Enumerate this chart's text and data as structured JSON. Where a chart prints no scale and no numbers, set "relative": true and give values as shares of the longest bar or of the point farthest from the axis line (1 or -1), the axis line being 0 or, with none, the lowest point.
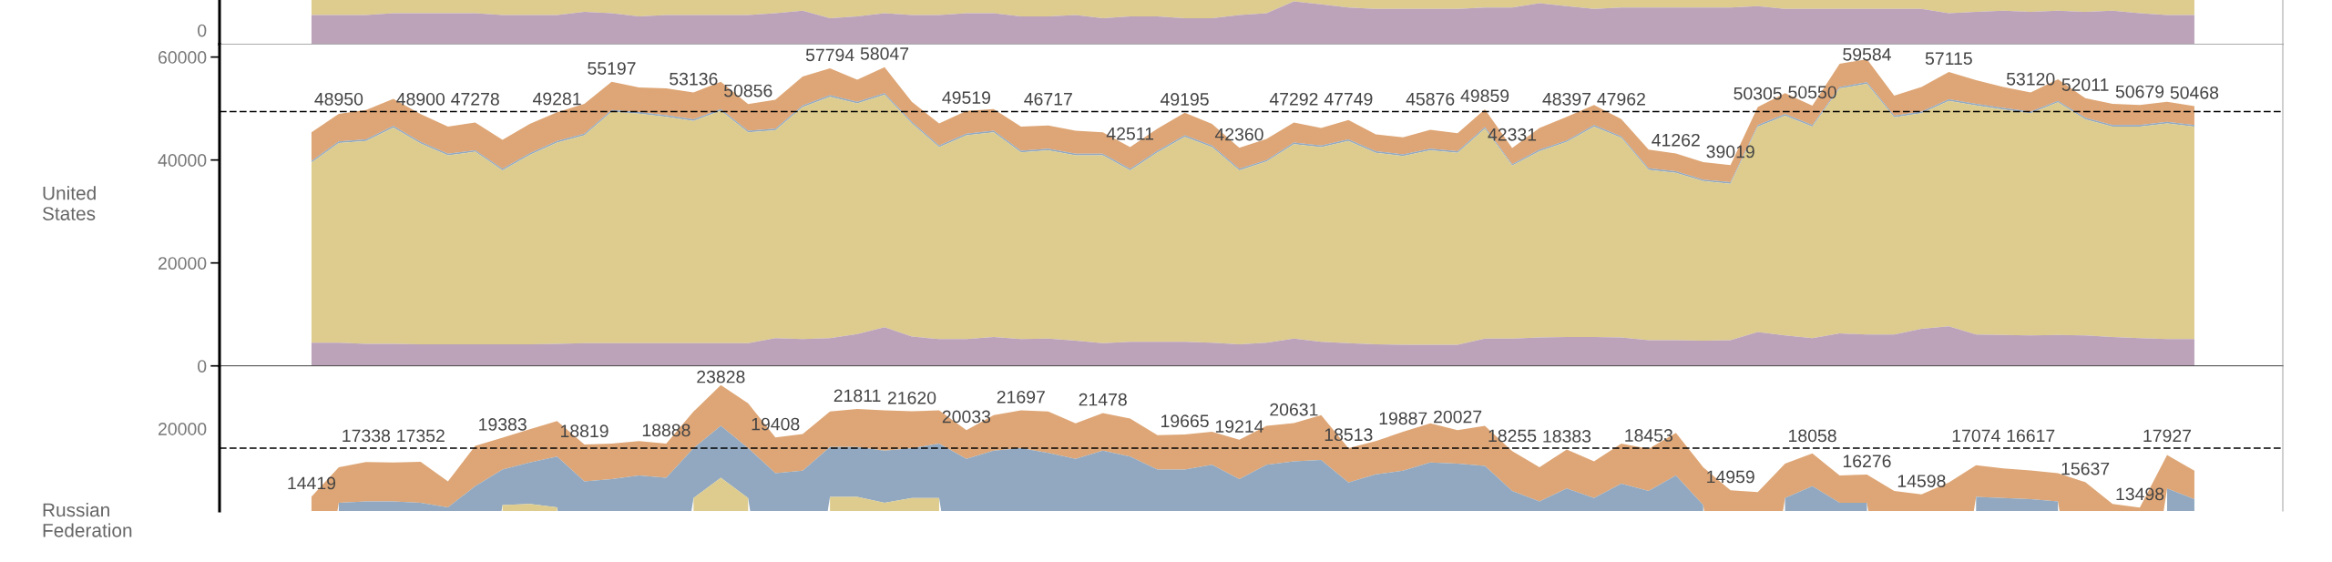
{
  "chart_data": [
    {
      "type": "area",
      "relative": true,
      "annotations": [
        "0"
      ],
      "categories": [
        null,
        null,
        null,
        null,
        null,
        null,
        null,
        null,
        null,
        null,
        null,
        null,
        null,
        null,
        null,
        null,
        null,
        null,
        null,
        null,
        null,
        null,
        null,
        null,
        null,
        null,
        null,
        null,
        null,
        null,
        null,
        null,
        null,
        null,
        null,
        null,
        null,
        null,
        null,
        null,
        null,
        null,
        null,
        null,
        null,
        null,
        null,
        null,
        null,
        null,
        null,
        null,
        null,
        null,
        null,
        null,
        null,
        null,
        null,
        null,
        null,
        null,
        null,
        null,
        null,
        null,
        null,
        null,
        null,
        null
      ],
      "series": [
        {
          "color": "#ddcc8e",
          "values": [
            1,
            1,
            1,
            1,
            1,
            1,
            1,
            1,
            1,
            1,
            1,
            1,
            1,
            1,
            1,
            1,
            1,
            1,
            1,
            1,
            1,
            1,
            1,
            1,
            1,
            1,
            1,
            1,
            1,
            1,
            1,
            1,
            1,
            1,
            1,
            1,
            1,
            1,
            1,
            1,
            1,
            1,
            1,
            1,
            1,
            1,
            1,
            1,
            1,
            1,
            1,
            1,
            1,
            1,
            1,
            1,
            1,
            1,
            1,
            1,
            1,
            1,
            1,
            1,
            1,
            1,
            1,
            1,
            1,
            1
          ]
        },
        {
          "color": "#bca3b9",
          "values": [
            0.66,
            0.66,
            0.66,
            0.7,
            0.7,
            0.7,
            0.7,
            0.66,
            0.66,
            0.66,
            0.73,
            0.7,
            0.63,
            0.66,
            0.66,
            0.66,
            0.66,
            0.7,
            0.76,
            0.59,
            0.63,
            0.7,
            0.66,
            0.66,
            0.7,
            0.7,
            0.63,
            0.63,
            0.66,
            0.59,
            0.63,
            0.63,
            0.59,
            0.59,
            0.66,
            0.7,
            0.97,
            0.9,
            0.83,
            0.8,
            0.8,
            0.8,
            0.8,
            0.83,
            0.83,
            0.93,
            0.86,
            0.8,
            0.83,
            0.83,
            0.83,
            0.83,
            0.83,
            0.86,
            0.8,
            0.8,
            0.8,
            0.8,
            0.8,
            0.8,
            0.7,
            0.73,
            0.76,
            0.73,
            0.76,
            0.73,
            0.76,
            0.7,
            0.66,
            0.66
          ]
        }
      ]
    },
    {
      "type": "area",
      "title": "United States",
      "ylim": [
        0,
        62500
      ],
      "yticks": [
        0,
        20000,
        40000,
        60000
      ],
      "ref_lines": [
        {
          "axis": "y",
          "value": 49400,
          "line_style": "dashed",
          "color": "#000000"
        }
      ],
      "categories": [
        null,
        null,
        null,
        null,
        null,
        null,
        null,
        null,
        null,
        null,
        null,
        null,
        null,
        null,
        null,
        null,
        null,
        null,
        null,
        null,
        null,
        null,
        null,
        null,
        null,
        null,
        null,
        null,
        null,
        null,
        null,
        null,
        null,
        null,
        null,
        null,
        null,
        null,
        null,
        null,
        null,
        null,
        null,
        null,
        null,
        null,
        null,
        null,
        null,
        null,
        null,
        null,
        null,
        null,
        null,
        null,
        null,
        null,
        null,
        null,
        null,
        null,
        null,
        null,
        null,
        null,
        null,
        null,
        null,
        null
      ],
      "series": [
        {
          "color": "#dea676",
          "values": [
            45400,
            48950,
            49700,
            51900,
            48900,
            46500,
            47278,
            43900,
            47000,
            49281,
            50900,
            55197,
            54100,
            53900,
            53136,
            55200,
            50856,
            51700,
            56200,
            57794,
            55600,
            58047,
            51300,
            47100,
            49519,
            49900,
            46500,
            46717,
            45700,
            45400,
            42511,
            46100,
            49195,
            47000,
            42360,
            44100,
            47292,
            46200,
            47749,
            45000,
            44400,
            45876,
            45200,
            49859,
            42331,
            46200,
            48397,
            50700,
            47962,
            42000,
            41262,
            39600,
            39019,
            50305,
            53000,
            50550,
            58700,
            59584,
            52500,
            54200,
            57115,
            55500,
            54200,
            53120,
            55700,
            52011,
            50900,
            50679,
            51300,
            50468
          ],
          "value_labels": [
            null,
            "48950",
            null,
            null,
            "48900",
            null,
            "47278",
            null,
            null,
            "49281",
            null,
            "55197",
            null,
            null,
            "53136",
            null,
            "50856",
            null,
            null,
            "57794",
            null,
            "58047",
            null,
            null,
            "49519",
            null,
            null,
            "46717",
            null,
            null,
            "42511",
            null,
            "49195",
            null,
            "42360",
            null,
            "47292",
            null,
            "47749",
            null,
            null,
            "45876",
            null,
            "49859",
            "42331",
            null,
            "48397",
            null,
            "47962",
            null,
            "41262",
            null,
            "39019",
            "50305",
            null,
            "50550",
            null,
            "59584",
            null,
            null,
            "57115",
            null,
            null,
            "53120",
            null,
            "52011",
            null,
            "50679",
            null,
            "50468"
          ]
        },
        {
          "color": "#91a8c0",
          "values": [
            39800,
            43600,
            44000,
            46600,
            43500,
            41200,
            41900,
            38300,
            41300,
            43700,
            45100,
            49700,
            49300,
            48700,
            47900,
            49900,
            45700,
            46100,
            50600,
            52600,
            51300,
            53000,
            47400,
            42800,
            45100,
            45700,
            41800,
            42200,
            41200,
            41200,
            38300,
            41800,
            44800,
            42800,
            38300,
            40000,
            43400,
            42800,
            44000,
            41700,
            41100,
            42200,
            41700,
            46400,
            39200,
            42000,
            43800,
            46800,
            44600,
            38400,
            37800,
            36200,
            35700,
            46800,
            48900,
            46800,
            54200,
            55100,
            48600,
            49400,
            51800,
            50900,
            50100,
            49400,
            51500,
            48200,
            46800,
            46800,
            47400,
            46800
          ]
        },
        {
          "color": "#ddcc8e",
          "values": [
            39500,
            43300,
            43700,
            46300,
            43200,
            40900,
            41600,
            38000,
            41000,
            43400,
            44800,
            49400,
            49000,
            48400,
            47600,
            49600,
            45400,
            45800,
            50300,
            52300,
            51000,
            52700,
            47100,
            42500,
            44800,
            45400,
            41500,
            41900,
            40900,
            40900,
            38000,
            41500,
            44500,
            42500,
            38000,
            39700,
            43100,
            42500,
            43700,
            41400,
            40800,
            41900,
            41400,
            46100,
            38900,
            41700,
            43500,
            46500,
            44300,
            38100,
            37500,
            35900,
            35400,
            46500,
            48600,
            46500,
            53900,
            54800,
            48300,
            49100,
            51500,
            50600,
            49800,
            49100,
            51200,
            47900,
            46500,
            46500,
            47100,
            46500
          ]
        },
        {
          "color": "#bca3b9",
          "values": [
            4500,
            4500,
            4300,
            4300,
            4200,
            4200,
            4200,
            4200,
            4200,
            4300,
            4400,
            4400,
            4400,
            4400,
            4400,
            4400,
            4400,
            5400,
            5200,
            5400,
            6200,
            7500,
            5700,
            5200,
            5200,
            5600,
            5200,
            5300,
            4900,
            4400,
            4700,
            4700,
            4700,
            4500,
            4200,
            4500,
            5300,
            4700,
            4400,
            4200,
            4100,
            4100,
            4100,
            5300,
            5300,
            5500,
            5600,
            5600,
            5500,
            5000,
            5000,
            4900,
            5000,
            6600,
            5900,
            5400,
            6300,
            6100,
            6100,
            7200,
            7700,
            6100,
            6000,
            5900,
            6000,
            5900,
            5600,
            5400,
            5200,
            5200
          ]
        }
      ]
    },
    {
      "type": "area",
      "ylim": [
        13200,
        25400
      ],
      "annotations": [
        "20000",
        "Russian Federation"
      ],
      "ref_lines": [
        {
          "axis": "y",
          "value": 18500,
          "line_style": "dashed",
          "color": "#000000"
        }
      ],
      "categories": [
        null,
        null,
        null,
        null,
        null,
        null,
        null,
        null,
        null,
        null,
        null,
        null,
        null,
        null,
        null,
        null,
        null,
        null,
        null,
        null,
        null,
        null,
        null,
        null,
        null,
        null,
        null,
        null,
        null,
        null,
        null,
        null,
        null,
        null,
        null,
        null,
        null,
        null,
        null,
        null,
        null,
        null,
        null,
        null,
        null,
        null,
        null,
        null,
        null,
        null,
        null,
        null,
        null,
        null,
        null,
        null,
        null,
        null,
        null,
        null,
        null,
        null,
        null,
        null,
        null,
        null,
        null,
        null,
        null,
        null
      ],
      "series": [
        {
          "color": "#dea676",
          "values": [
            14419,
            16900,
            17338,
            17300,
            17352,
            15700,
            18700,
            19383,
            20100,
            20800,
            18819,
            18900,
            19100,
            18888,
            21600,
            23828,
            22300,
            19408,
            19700,
            21600,
            21811,
            21700,
            21620,
            21700,
            20033,
            21300,
            21697,
            21600,
            20600,
            21478,
            21000,
            19600,
            19665,
            19900,
            19214,
            20400,
            20631,
            21300,
            18513,
            19100,
            19887,
            20600,
            20027,
            20400,
            18255,
            16900,
            18383,
            17400,
            18900,
            18453,
            19800,
            16900,
            14959,
            14800,
            17200,
            18058,
            16200,
            16276,
            14900,
            14598,
            15600,
            17074,
            16800,
            16617,
            16400,
            15637,
            13800,
            13498,
            17927,
            16600
          ],
          "value_labels": [
            "14419",
            null,
            "17338",
            null,
            "17352",
            null,
            null,
            "19383",
            null,
            null,
            "18819",
            null,
            null,
            "18888",
            null,
            "23828",
            null,
            "19408",
            null,
            null,
            "21811",
            null,
            "21620",
            null,
            "20033",
            null,
            "21697",
            null,
            null,
            "21478",
            null,
            null,
            "19665",
            null,
            "19214",
            null,
            "20631",
            null,
            "18513",
            null,
            "19887",
            null,
            "20027",
            null,
            "18255",
            null,
            "18383",
            null,
            null,
            "18453",
            null,
            null,
            "14959",
            null,
            null,
            "18058",
            null,
            "16276",
            null,
            "14598",
            null,
            "17074",
            null,
            "16617",
            null,
            "15637",
            null,
            "13498",
            "17927",
            null
          ]
        },
        {
          "color": "#91a8c0",
          "values": [
            null,
            13900,
            14000,
            14000,
            13900,
            13500,
            15300,
            16700,
            17300,
            17800,
            15700,
            15900,
            16200,
            16000,
            18500,
            20400,
            18500,
            16400,
            16600,
            18600,
            18600,
            18300,
            18500,
            18900,
            17600,
            18300,
            18500,
            18100,
            17600,
            18300,
            17800,
            16700,
            16700,
            17100,
            15900,
            17100,
            17400,
            17500,
            15600,
            16300,
            16600,
            17300,
            17200,
            17000,
            14900,
            14000,
            15100,
            14300,
            15500,
            14900,
            16200,
            13700,
            null,
            null,
            14300,
            15300,
            13900,
            13900,
            null,
            null,
            null,
            14400,
            14300,
            14200,
            14000,
            null,
            null,
            null,
            15100,
            14200
          ]
        },
        {
          "color": "#ddcc8e",
          "values": [
            null,
            null,
            null,
            null,
            null,
            null,
            null,
            13700,
            13800,
            13500,
            null,
            null,
            null,
            null,
            14300,
            16000,
            14300,
            null,
            null,
            14400,
            14400,
            13900,
            14300,
            14300,
            null,
            null,
            null,
            null,
            null,
            null,
            null,
            null,
            null,
            null,
            null,
            null,
            null,
            null,
            null,
            null,
            null,
            null,
            null,
            null,
            null,
            null,
            null,
            null,
            null,
            null,
            null,
            null,
            null,
            null,
            null,
            null,
            null,
            null,
            null,
            null,
            null,
            null,
            null,
            null,
            null,
            null,
            null,
            null,
            null,
            null
          ]
        }
      ]
    }
  ]
}
